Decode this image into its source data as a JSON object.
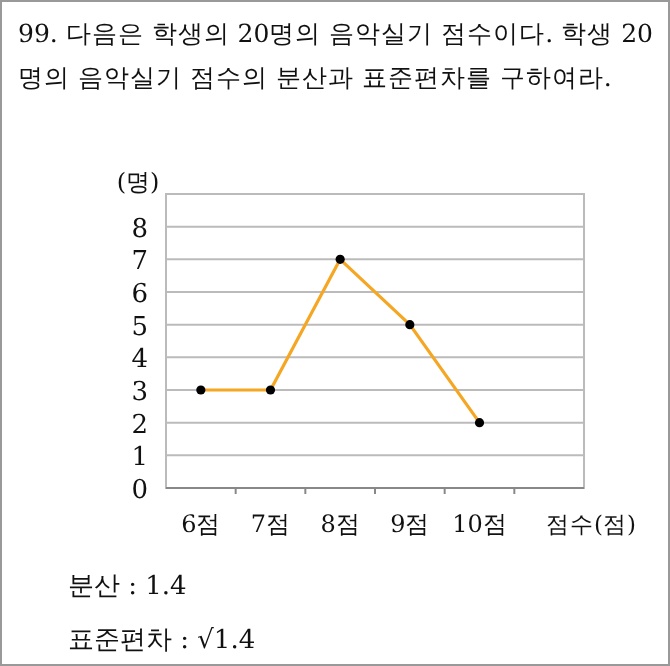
{
  "chart_data": {
    "type": "line",
    "title": "99. 다음은 학생의 20명의 음악실기 점수이다. 학생 20명의 음악실기 점수의 분산과 표준편차를 구하여라.",
    "xlabel": "점수(점)",
    "ylabel": "(명)",
    "categories": [
      "6점",
      "7점",
      "8점",
      "9점",
      "10점"
    ],
    "series": [
      {
        "color": "#f5a623",
        "values": [
          3,
          3,
          7,
          5,
          2
        ]
      }
    ],
    "ylim": [
      0,
      9
    ],
    "yticks": [
      0,
      1,
      2,
      3,
      4,
      5,
      6,
      7,
      8
    ],
    "grid": "y",
    "marker": "circle",
    "line_style": "solid",
    "annotations": [
      "분산 : 1.4",
      "표준편차 : √1.4"
    ]
  }
}
